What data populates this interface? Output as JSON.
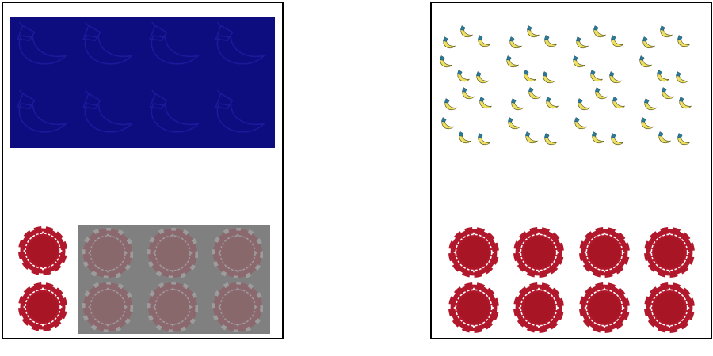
{
  "colors": {
    "background": "#ffffff",
    "border": "#000000",
    "blue_block": "#0d0d7f",
    "gray_block": "#808080",
    "chip_red": "#b2182b",
    "chip_white": "#ffffff",
    "moon_yellow": "#f0e060",
    "moon_cap": "#2a7a9a"
  },
  "panels": [
    {
      "id": "left",
      "top_group": {
        "icon": "moon-icon",
        "rows": 2,
        "cols": 4,
        "style": "dim-on-blue"
      },
      "bottom_group": {
        "icon": "poker-chip-icon",
        "visible_count": 2,
        "covered_count": 6
      }
    },
    {
      "id": "right",
      "top_group": {
        "icon": "moon-icon",
        "count": 48,
        "style": "small-scattered"
      },
      "bottom_group": {
        "icon": "poker-chip-icon",
        "rows": 2,
        "cols": 4,
        "visible_count": 8
      }
    }
  ]
}
